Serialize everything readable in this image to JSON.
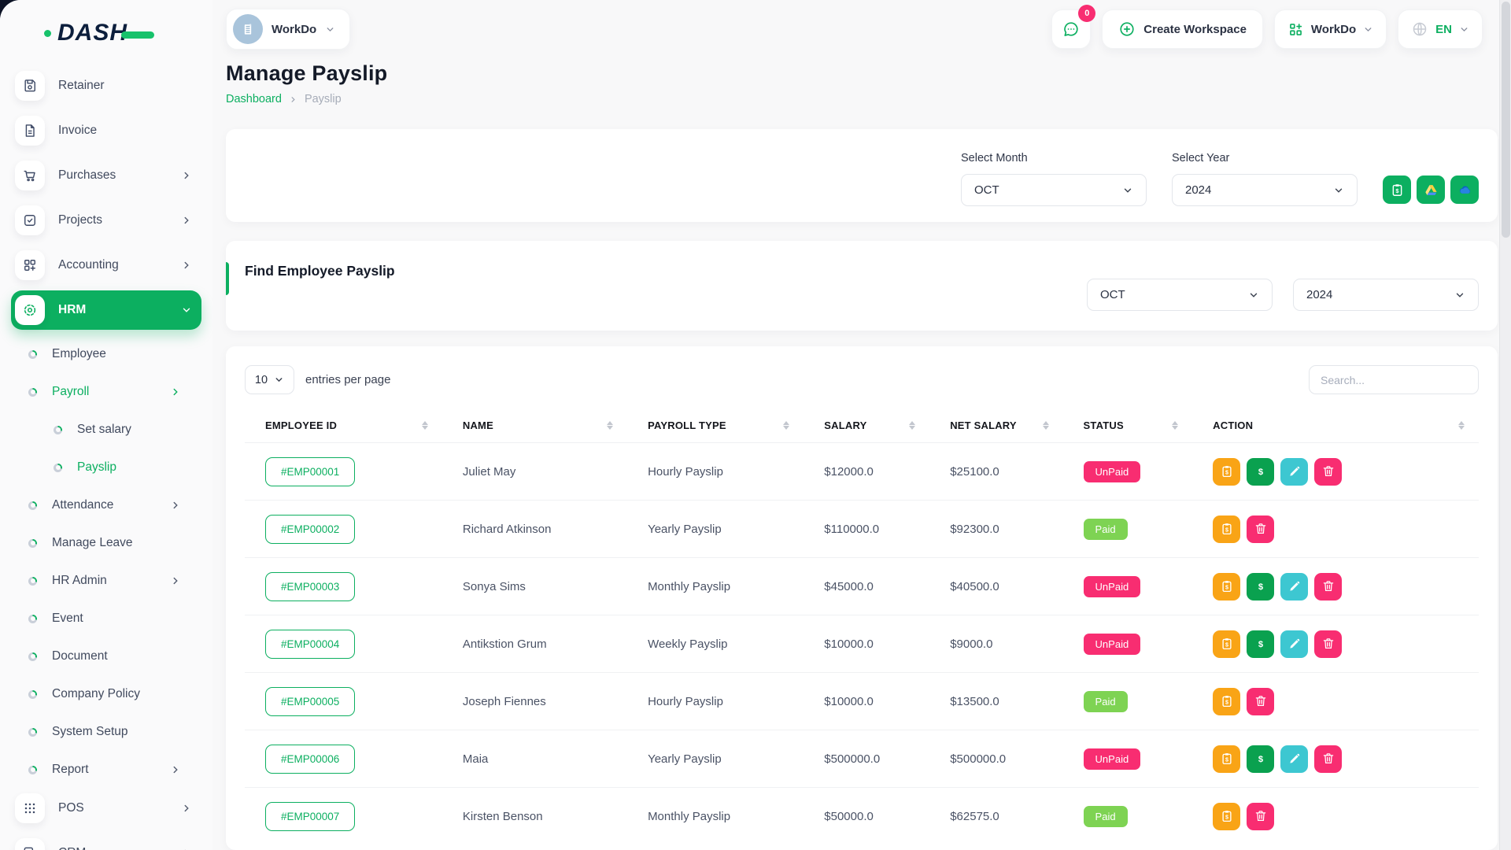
{
  "brand": {
    "name": "DASH"
  },
  "topbar": {
    "workspace_switcher": {
      "label": "WorkDo",
      "icon": "building-icon"
    },
    "messages": {
      "icon": "chat-icon",
      "badge": "0"
    },
    "create_workspace": {
      "label": "Create Workspace",
      "icon": "plus-circle-icon"
    },
    "workdo_menu": {
      "label": "WorkDo",
      "icon": "grid-plus-icon"
    },
    "language": {
      "code": "EN",
      "icon": "globe-icon"
    }
  },
  "sidebar": {
    "items": [
      {
        "label": "Retainer",
        "kind": "top",
        "icon": "save"
      },
      {
        "label": "Invoice",
        "kind": "top",
        "icon": "invoice"
      },
      {
        "label": "Purchases",
        "kind": "top",
        "icon": "cart",
        "chevron": "right"
      },
      {
        "label": "Projects",
        "kind": "top",
        "icon": "check-square",
        "chevron": "right"
      },
      {
        "label": "Accounting",
        "kind": "top",
        "icon": "grid-plus",
        "chevron": "right"
      },
      {
        "label": "HRM",
        "kind": "top",
        "icon": "hrm",
        "chevron": "down",
        "active": true
      },
      {
        "label": "Employee",
        "kind": "sub",
        "level": 1
      },
      {
        "label": "Payroll",
        "kind": "sub",
        "level": 1,
        "chevron": "right",
        "active": true
      },
      {
        "label": "Set salary",
        "kind": "sub",
        "level": 2
      },
      {
        "label": "Payslip",
        "kind": "sub",
        "level": 2,
        "active": true
      },
      {
        "label": "Attendance",
        "kind": "sub",
        "level": 1,
        "chevron": "right"
      },
      {
        "label": "Manage Leave",
        "kind": "sub",
        "level": 1
      },
      {
        "label": "HR Admin",
        "kind": "sub",
        "level": 1,
        "chevron": "right"
      },
      {
        "label": "Event",
        "kind": "sub",
        "level": 1
      },
      {
        "label": "Document",
        "kind": "sub",
        "level": 1
      },
      {
        "label": "Company Policy",
        "kind": "sub",
        "level": 1
      },
      {
        "label": "System Setup",
        "kind": "sub",
        "level": 1
      },
      {
        "label": "Report",
        "kind": "sub",
        "level": 1,
        "chevron": "right"
      },
      {
        "label": "POS",
        "kind": "top",
        "icon": "dots",
        "chevron": "right"
      },
      {
        "label": "CRM",
        "kind": "top",
        "icon": "crm",
        "chevron": "right"
      }
    ]
  },
  "page": {
    "title": "Manage Payslip",
    "breadcrumb": [
      "Dashboard",
      "Payslip"
    ]
  },
  "filters": {
    "month_label": "Select Month",
    "month_value": "OCT",
    "year_label": "Select Year",
    "year_value": "2024",
    "buttons": [
      "payslip-export",
      "google-drive",
      "onedrive"
    ]
  },
  "find_section": {
    "title": "Find Employee Payslip",
    "month_value": "OCT",
    "year_value": "2024"
  },
  "table": {
    "entries_per_page_value": "10",
    "entries_per_page_label": "entries per page",
    "search_placeholder": "Search...",
    "columns": [
      "EMPLOYEE ID",
      "NAME",
      "PAYROLL TYPE",
      "SALARY",
      "NET SALARY",
      "STATUS",
      "ACTION"
    ],
    "actions_by_status": {
      "UnPaid": [
        "payslip",
        "payment",
        "edit",
        "delete"
      ],
      "Paid": [
        "payslip",
        "delete"
      ]
    },
    "rows": [
      {
        "id": "#EMP00001",
        "name": "Juliet May",
        "type": "Hourly Payslip",
        "salary": "$12000.0",
        "net": "$25100.0",
        "status": "UnPaid"
      },
      {
        "id": "#EMP00002",
        "name": "Richard Atkinson",
        "type": "Yearly Payslip",
        "salary": "$110000.0",
        "net": "$92300.0",
        "status": "Paid"
      },
      {
        "id": "#EMP00003",
        "name": "Sonya Sims",
        "type": "Monthly Payslip",
        "salary": "$45000.0",
        "net": "$40500.0",
        "status": "UnPaid"
      },
      {
        "id": "#EMP00004",
        "name": "Antikstion Grum",
        "type": "Weekly Payslip",
        "salary": "$10000.0",
        "net": "$9000.0",
        "status": "UnPaid"
      },
      {
        "id": "#EMP00005",
        "name": "Joseph Fiennes",
        "type": "Hourly Payslip",
        "salary": "$10000.0",
        "net": "$13500.0",
        "status": "Paid"
      },
      {
        "id": "#EMP00006",
        "name": "Maia",
        "type": "Yearly Payslip",
        "salary": "$500000.0",
        "net": "$500000.0",
        "status": "UnPaid"
      },
      {
        "id": "#EMP00007",
        "name": "Kirsten Benson",
        "type": "Monthly Payslip",
        "salary": "$50000.0",
        "net": "$62575.0",
        "status": "Paid"
      }
    ]
  },
  "colors": {
    "primary_green": "#0CAF60",
    "pink": "#F82D71",
    "lime": "#7ED353",
    "orange": "#F9A416",
    "cyan": "#3DC7D1",
    "navy_text": "#141A28"
  }
}
